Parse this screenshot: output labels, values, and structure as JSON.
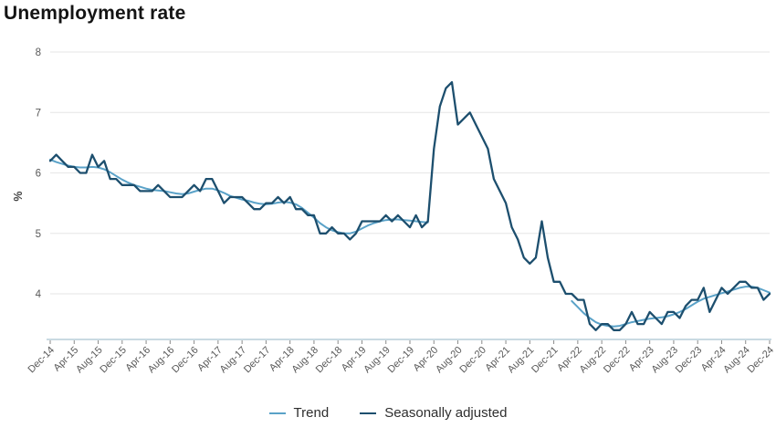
{
  "title": "Unemployment rate",
  "legend": {
    "items": [
      "Trend",
      "Seasonally adjusted"
    ]
  },
  "colors": {
    "trend_line": "#5aa2c8",
    "seasonally_adjusted_line": "#1d4f6e",
    "gridline": "#e6e6e6",
    "axis_baseline": "#b7cdd9",
    "tick_label": "#595959",
    "title_text": "#141414"
  },
  "chart_data": {
    "type": "line",
    "title": "Unemployment rate",
    "xlabel": "",
    "ylabel": "%",
    "ylim": [
      3.25,
      8.1
    ],
    "y_ticks": [
      4,
      5,
      6,
      7,
      8
    ],
    "x_tick_every": 4,
    "grid": "horizontal",
    "legend_position": "bottom",
    "x": [
      "Dec-14",
      "Jan-15",
      "Feb-15",
      "Mar-15",
      "Apr-15",
      "May-15",
      "Jun-15",
      "Jul-15",
      "Aug-15",
      "Sep-15",
      "Oct-15",
      "Nov-15",
      "Dec-15",
      "Jan-16",
      "Feb-16",
      "Mar-16",
      "Apr-16",
      "May-16",
      "Jun-16",
      "Jul-16",
      "Aug-16",
      "Sep-16",
      "Oct-16",
      "Nov-16",
      "Dec-16",
      "Jan-17",
      "Feb-17",
      "Mar-17",
      "Apr-17",
      "May-17",
      "Jun-17",
      "Jul-17",
      "Aug-17",
      "Sep-17",
      "Oct-17",
      "Nov-17",
      "Dec-17",
      "Jan-18",
      "Feb-18",
      "Mar-18",
      "Apr-18",
      "May-18",
      "Jun-18",
      "Jul-18",
      "Aug-18",
      "Sep-18",
      "Oct-18",
      "Nov-18",
      "Dec-18",
      "Jan-19",
      "Feb-19",
      "Mar-19",
      "Apr-19",
      "May-19",
      "Jun-19",
      "Jul-19",
      "Aug-19",
      "Sep-19",
      "Oct-19",
      "Nov-19",
      "Dec-19",
      "Jan-20",
      "Feb-20",
      "Mar-20",
      "Apr-20",
      "May-20",
      "Jun-20",
      "Jul-20",
      "Aug-20",
      "Sep-20",
      "Oct-20",
      "Nov-20",
      "Dec-20",
      "Jan-21",
      "Feb-21",
      "Mar-21",
      "Apr-21",
      "May-21",
      "Jun-21",
      "Jul-21",
      "Aug-21",
      "Sep-21",
      "Oct-21",
      "Nov-21",
      "Dec-21",
      "Jan-22",
      "Feb-22",
      "Mar-22",
      "Apr-22",
      "May-22",
      "Jun-22",
      "Jul-22",
      "Aug-22",
      "Sep-22",
      "Oct-22",
      "Nov-22",
      "Dec-22",
      "Jan-23",
      "Feb-23",
      "Mar-23",
      "Apr-23",
      "May-23",
      "Jun-23",
      "Jul-23",
      "Aug-23",
      "Sep-23",
      "Oct-23",
      "Nov-23",
      "Dec-23",
      "Jan-24",
      "Feb-24",
      "Mar-24",
      "Apr-24",
      "May-24",
      "Jun-24",
      "Jul-24",
      "Aug-24",
      "Sep-24",
      "Oct-24",
      "Nov-24",
      "Dec-24"
    ],
    "series": [
      {
        "name": "Trend",
        "color": "#5aa2c8",
        "values": [
          6.22,
          6.18,
          6.15,
          6.12,
          6.1,
          6.09,
          6.09,
          6.1,
          6.09,
          6.06,
          6.01,
          5.95,
          5.89,
          5.84,
          5.8,
          5.77,
          5.74,
          5.72,
          5.71,
          5.7,
          5.68,
          5.66,
          5.65,
          5.66,
          5.69,
          5.72,
          5.74,
          5.74,
          5.71,
          5.67,
          5.62,
          5.59,
          5.56,
          5.54,
          5.51,
          5.49,
          5.48,
          5.49,
          5.51,
          5.52,
          5.51,
          5.48,
          5.42,
          5.34,
          5.26,
          5.17,
          5.1,
          5.05,
          5.02,
          5.0,
          5.0,
          5.03,
          5.08,
          5.13,
          5.17,
          5.2,
          5.22,
          5.23,
          5.23,
          5.22,
          5.21,
          5.2,
          5.19,
          5.18,
          null,
          null,
          null,
          null,
          null,
          null,
          null,
          null,
          null,
          null,
          null,
          null,
          null,
          null,
          null,
          null,
          null,
          null,
          null,
          null,
          null,
          null,
          null,
          3.88,
          3.78,
          3.68,
          3.6,
          3.53,
          3.49,
          3.47,
          3.46,
          3.47,
          3.5,
          3.53,
          3.55,
          3.57,
          3.59,
          3.6,
          3.61,
          3.63,
          3.66,
          3.7,
          3.75,
          3.81,
          3.87,
          3.92,
          3.95,
          3.98,
          4.01,
          4.04,
          4.07,
          4.1,
          4.12,
          4.12,
          4.1,
          4.06,
          4.02
        ]
      },
      {
        "name": "Seasonally adjusted",
        "color": "#1d4f6e",
        "values": [
          6.2,
          6.3,
          6.2,
          6.1,
          6.1,
          6.0,
          6.0,
          6.3,
          6.1,
          6.2,
          5.9,
          5.9,
          5.8,
          5.8,
          5.8,
          5.7,
          5.7,
          5.7,
          5.8,
          5.7,
          5.6,
          5.6,
          5.6,
          5.7,
          5.8,
          5.7,
          5.9,
          5.9,
          5.7,
          5.5,
          5.6,
          5.6,
          5.6,
          5.5,
          5.4,
          5.4,
          5.5,
          5.5,
          5.6,
          5.5,
          5.6,
          5.4,
          5.4,
          5.3,
          5.3,
          5.0,
          5.0,
          5.1,
          5.0,
          5.0,
          4.9,
          5.0,
          5.2,
          5.2,
          5.2,
          5.2,
          5.3,
          5.2,
          5.3,
          5.2,
          5.1,
          5.3,
          5.1,
          5.2,
          6.4,
          7.1,
          7.4,
          7.5,
          6.8,
          6.9,
          7.0,
          6.8,
          6.6,
          6.4,
          5.9,
          5.7,
          5.5,
          5.1,
          4.9,
          4.6,
          4.5,
          4.6,
          5.2,
          4.6,
          4.2,
          4.2,
          4.0,
          4.0,
          3.9,
          3.9,
          3.5,
          3.4,
          3.5,
          3.5,
          3.4,
          3.4,
          3.5,
          3.7,
          3.5,
          3.5,
          3.7,
          3.6,
          3.5,
          3.7,
          3.7,
          3.6,
          3.8,
          3.9,
          3.9,
          4.1,
          3.7,
          3.9,
          4.1,
          4.0,
          4.1,
          4.2,
          4.2,
          4.1,
          4.1,
          3.9,
          4.0
        ]
      }
    ]
  }
}
